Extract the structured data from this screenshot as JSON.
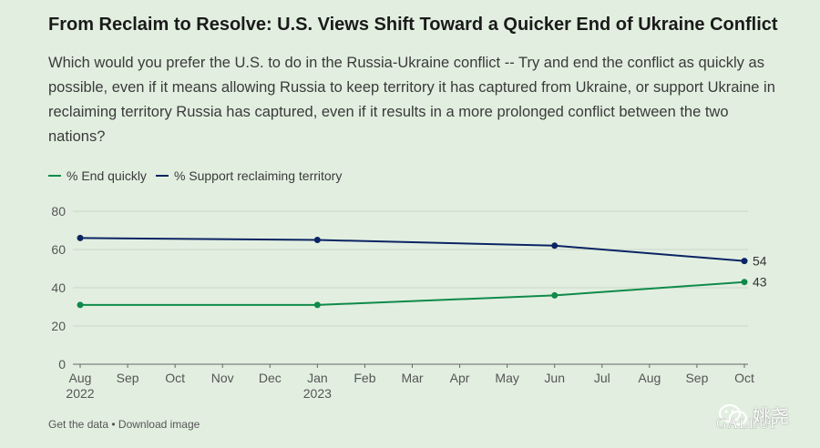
{
  "header": {
    "title": "From Reclaim to Resolve: U.S. Views Shift Toward a Quicker End of Ukraine Conflict",
    "subtitle": "Which would you prefer the U.S. to do in the Russia-Ukraine conflict -- Try and end the conflict as quickly as possible, even if it means allowing Russia to keep territory it has captured from Ukraine, or support Ukraine in reclaiming territory Russia has captured, even if it results in a more prolonged conflict between the two nations?"
  },
  "legend": {
    "items": [
      {
        "label": "% End quickly",
        "color": "#0f8a4a"
      },
      {
        "label": "% Support reclaiming territory",
        "color": "#0b2463"
      }
    ]
  },
  "chart_data": {
    "type": "line",
    "title": "From Reclaim to Resolve: U.S. Views Shift Toward a Quicker End of Ukraine Conflict",
    "xlabel": "",
    "ylabel": "",
    "ylim": [
      0,
      80
    ],
    "yticks": [
      0,
      20,
      40,
      60,
      80
    ],
    "grid": true,
    "legend_position": "top-left",
    "month_ticks": [
      {
        "label": "Aug",
        "sub": "2022"
      },
      {
        "label": "Sep",
        "sub": ""
      },
      {
        "label": "Oct",
        "sub": ""
      },
      {
        "label": "Nov",
        "sub": ""
      },
      {
        "label": "Dec",
        "sub": ""
      },
      {
        "label": "Jan",
        "sub": "2023"
      },
      {
        "label": "Feb",
        "sub": ""
      },
      {
        "label": "Mar",
        "sub": ""
      },
      {
        "label": "Apr",
        "sub": ""
      },
      {
        "label": "May",
        "sub": ""
      },
      {
        "label": "Jun",
        "sub": ""
      },
      {
        "label": "Jul",
        "sub": ""
      },
      {
        "label": "Aug",
        "sub": ""
      },
      {
        "label": "Sep",
        "sub": ""
      },
      {
        "label": "Oct",
        "sub": ""
      }
    ],
    "series": [
      {
        "name": "% End quickly",
        "color": "#0f8a4a",
        "points": [
          {
            "month": 0,
            "value": 31
          },
          {
            "month": 5,
            "value": 31
          },
          {
            "month": 10,
            "value": 36
          },
          {
            "month": 14,
            "value": 43
          }
        ],
        "end_label": "43"
      },
      {
        "name": "% Support reclaiming territory",
        "color": "#0b2463",
        "points": [
          {
            "month": 0,
            "value": 66
          },
          {
            "month": 5,
            "value": 65
          },
          {
            "month": 10,
            "value": 62
          },
          {
            "month": 14,
            "value": 54
          }
        ],
        "end_label": "54"
      }
    ]
  },
  "footer": {
    "get_data": "Get the data",
    "separator": " • ",
    "download": "Download image"
  },
  "branding": {
    "source": "GALLUP",
    "watermark": "姚尧",
    "wechat_icon": "wechat-icon"
  }
}
